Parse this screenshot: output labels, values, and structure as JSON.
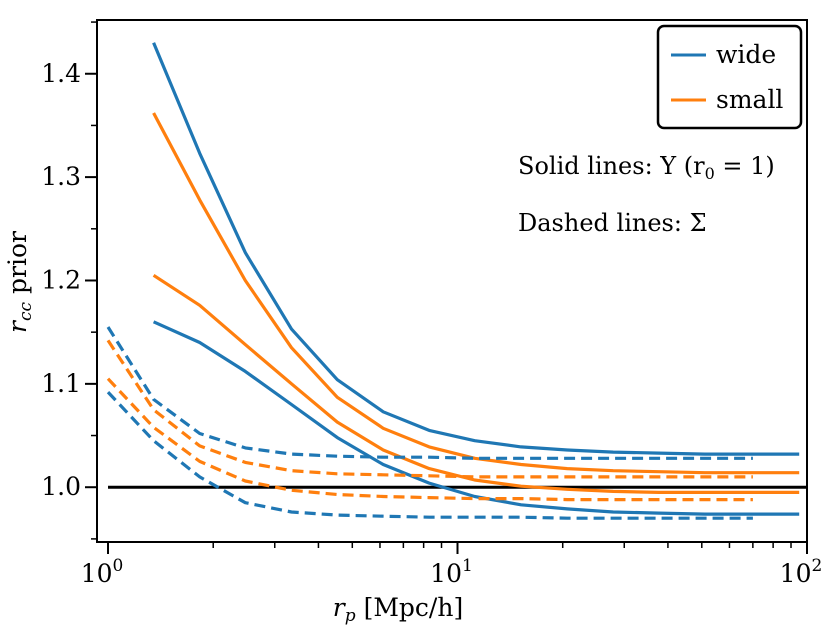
{
  "chart_data": {
    "type": "line",
    "xscale": "log",
    "xlim": [
      0.93,
      100
    ],
    "ylim": [
      0.947,
      1.452
    ],
    "xlabel": {
      "base": "r",
      "sub": "p",
      "rest": " [Mpc/h]"
    },
    "ylabel": {
      "base": "r",
      "sub": "cc",
      "rest": " prior"
    },
    "xticks": [
      {
        "value": 1,
        "base": "10",
        "exp": "0"
      },
      {
        "value": 10,
        "base": "10",
        "exp": "1"
      },
      {
        "value": 100,
        "base": "10",
        "exp": "2"
      }
    ],
    "yticks": [
      "1.0",
      "1.1",
      "1.2",
      "1.3",
      "1.4"
    ],
    "grid": false,
    "legend": {
      "position": "top-right",
      "entries": [
        {
          "label": "wide",
          "color": "#1f77b4"
        },
        {
          "label": "small",
          "color": "#ff7f0e"
        }
      ]
    },
    "annotations": [
      {
        "text": "Solid lines: Y (r",
        "sub": "0",
        "tail": " = 1)"
      },
      {
        "text": "Dashed lines: Σ"
      }
    ],
    "reference_line": {
      "y": 1.0,
      "x": [
        1,
        100
      ],
      "color": "#000000"
    },
    "series": [
      {
        "group": "wide",
        "style": "solid",
        "color": "#1f77b4",
        "x": [
          1.35,
          1.83,
          2.47,
          3.35,
          4.53,
          6.13,
          8.3,
          11.2,
          15.2,
          20.6,
          27.9,
          37.7,
          51.0,
          69.0,
          95.0
        ],
        "y": [
          1.43,
          1.323,
          1.227,
          1.153,
          1.104,
          1.073,
          1.055,
          1.045,
          1.039,
          1.036,
          1.034,
          1.033,
          1.032,
          1.032,
          1.032
        ]
      },
      {
        "group": "wide",
        "style": "solid",
        "color": "#1f77b4",
        "x": [
          1.35,
          1.83,
          2.47,
          3.35,
          4.53,
          6.13,
          8.3,
          11.2,
          15.2,
          20.6,
          27.9,
          37.7,
          51.0,
          69.0,
          95.0
        ],
        "y": [
          1.16,
          1.14,
          1.112,
          1.08,
          1.048,
          1.022,
          1.004,
          0.991,
          0.983,
          0.979,
          0.976,
          0.975,
          0.974,
          0.974,
          0.974
        ]
      },
      {
        "group": "small",
        "style": "solid",
        "color": "#ff7f0e",
        "x": [
          1.35,
          1.83,
          2.47,
          3.35,
          4.53,
          6.13,
          8.3,
          11.2,
          15.2,
          20.6,
          27.9,
          37.7,
          51.0,
          69.0,
          95.0
        ],
        "y": [
          1.362,
          1.278,
          1.2,
          1.135,
          1.087,
          1.057,
          1.039,
          1.028,
          1.022,
          1.018,
          1.016,
          1.015,
          1.014,
          1.014,
          1.014
        ]
      },
      {
        "group": "small",
        "style": "solid",
        "color": "#ff7f0e",
        "x": [
          1.35,
          1.83,
          2.47,
          3.35,
          4.53,
          6.13,
          8.3,
          11.2,
          15.2,
          20.6,
          27.9,
          37.7,
          51.0,
          69.0,
          95.0
        ],
        "y": [
          1.205,
          1.176,
          1.138,
          1.1,
          1.063,
          1.036,
          1.018,
          1.007,
          1.001,
          0.998,
          0.996,
          0.995,
          0.995,
          0.995,
          0.995
        ]
      },
      {
        "group": "wide",
        "style": "dashed",
        "color": "#1f77b4",
        "x": [
          1.0,
          1.35,
          1.83,
          2.47,
          3.35,
          4.53,
          6.13,
          8.3,
          11.2,
          15.2,
          20.6,
          27.9,
          37.7,
          51.0,
          70.0
        ],
        "y": [
          1.155,
          1.085,
          1.052,
          1.038,
          1.032,
          1.03,
          1.029,
          1.029,
          1.028,
          1.028,
          1.028,
          1.028,
          1.028,
          1.028,
          1.028
        ]
      },
      {
        "group": "small",
        "style": "dashed",
        "color": "#ff7f0e",
        "x": [
          1.0,
          1.35,
          1.83,
          2.47,
          3.35,
          4.53,
          6.13,
          8.3,
          11.2,
          15.2,
          20.6,
          27.9,
          37.7,
          51.0,
          70.0
        ],
        "y": [
          1.142,
          1.075,
          1.04,
          1.024,
          1.016,
          1.013,
          1.012,
          1.011,
          1.01,
          1.01,
          1.01,
          1.01,
          1.01,
          1.01,
          1.01
        ]
      },
      {
        "group": "small",
        "style": "dashed",
        "color": "#ff7f0e",
        "x": [
          1.0,
          1.35,
          1.83,
          2.47,
          3.35,
          4.53,
          6.13,
          8.3,
          11.2,
          15.2,
          20.6,
          27.9,
          37.7,
          51.0,
          70.0
        ],
        "y": [
          1.105,
          1.058,
          1.025,
          1.006,
          0.997,
          0.993,
          0.991,
          0.99,
          0.989,
          0.989,
          0.988,
          0.988,
          0.988,
          0.988,
          0.988
        ]
      },
      {
        "group": "wide",
        "style": "dashed",
        "color": "#1f77b4",
        "x": [
          1.0,
          1.35,
          1.83,
          2.47,
          3.35,
          4.53,
          6.13,
          8.3,
          11.2,
          15.2,
          20.6,
          27.9,
          37.7,
          51.0,
          70.0
        ],
        "y": [
          1.092,
          1.045,
          1.01,
          0.985,
          0.976,
          0.973,
          0.972,
          0.971,
          0.971,
          0.971,
          0.97,
          0.97,
          0.97,
          0.97,
          0.97
        ]
      }
    ]
  }
}
